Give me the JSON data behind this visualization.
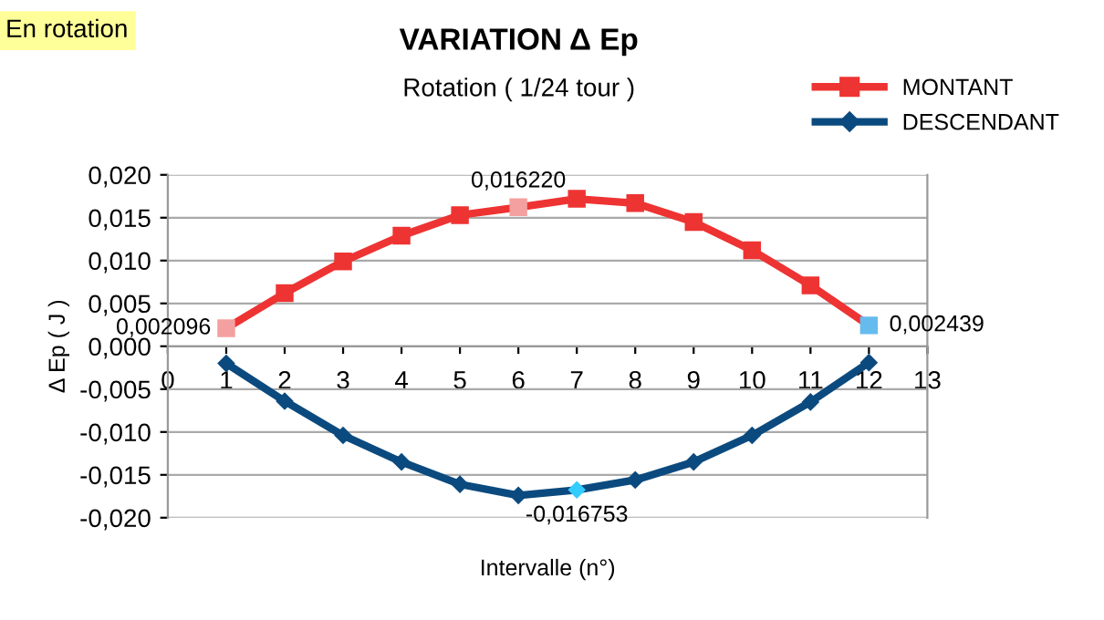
{
  "chart_data": {
    "type": "line",
    "title": "VARIATION Δ Ep",
    "subtitle": "Rotation ( 1/24 tour )",
    "xlabel": "Intervalle (n°)",
    "ylabel": "Δ Ep ( J )",
    "x": [
      1,
      2,
      3,
      4,
      5,
      6,
      7,
      8,
      9,
      10,
      11,
      12
    ],
    "series": [
      {
        "name": "MONTANT",
        "color": "#ee3333",
        "marker": "square",
        "values": [
          0.002096,
          0.0062,
          0.0099,
          0.0129,
          0.0153,
          0.01622,
          0.0172,
          0.0167,
          0.0145,
          0.0112,
          0.0071,
          0.002439
        ],
        "colors": [
          "#f4a0a0",
          "#ee3333",
          "#ee3333",
          "#ee3333",
          "#ee3333",
          "#f4a0a0",
          "#ee3333",
          "#ee3333",
          "#ee3333",
          "#ee3333",
          "#ee3333",
          "#66bbee"
        ]
      },
      {
        "name": "DESCENDANT",
        "color": "#0b4a7e",
        "marker": "diamond",
        "values": [
          -0.002,
          -0.0064,
          -0.0104,
          -0.0135,
          -0.0161,
          -0.0174,
          -0.016753,
          -0.0156,
          -0.0135,
          -0.0104,
          -0.0065,
          -0.0019
        ],
        "colors": [
          "#0b4a7e",
          "#0b4a7e",
          "#0b4a7e",
          "#0b4a7e",
          "#0b4a7e",
          "#0b4a7e",
          "#33ccff",
          "#0b4a7e",
          "#0b4a7e",
          "#0b4a7e",
          "#0b4a7e",
          "#0b4a7e"
        ]
      }
    ],
    "annotations": [
      "En rotation",
      {
        "text": "0,002096",
        "x": 1,
        "y": 0.002096
      },
      {
        "text": "0,016220",
        "x": 6,
        "y": 0.01622
      },
      {
        "text": "0,002439",
        "x": 12,
        "y": 0.002439
      },
      {
        "text": "-0,016753",
        "x": 7,
        "y": -0.016753
      }
    ],
    "xlim": [
      0,
      13
    ],
    "xticks": [
      0,
      1,
      2,
      3,
      4,
      5,
      6,
      7,
      8,
      9,
      10,
      11,
      12,
      13
    ],
    "ylim": [
      -0.02,
      0.02
    ],
    "yticks": [
      {
        "value": -0.02,
        "label": "-0,020"
      },
      {
        "value": -0.015,
        "label": "-0,015"
      },
      {
        "value": -0.01,
        "label": "-0,010"
      },
      {
        "value": -0.005,
        "label": "-0,005"
      },
      {
        "value": 0,
        "label": "0,000"
      },
      {
        "value": 0.005,
        "label": "0,005"
      },
      {
        "value": 0.01,
        "label": "0,010"
      },
      {
        "value": 0.015,
        "label": "0,015"
      },
      {
        "value": 0.02,
        "label": "0,020"
      }
    ],
    "grid": "y",
    "legend": "top right",
    "line_style": "solid"
  }
}
